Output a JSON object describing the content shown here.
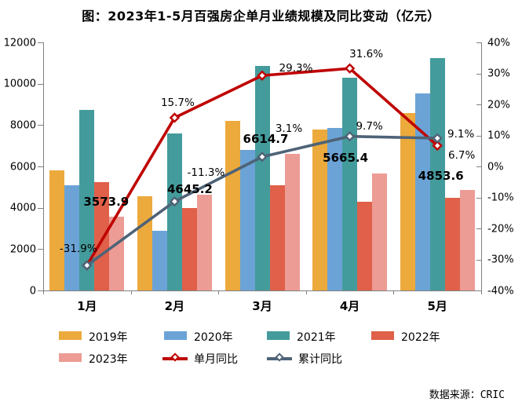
{
  "chart_data": {
    "type": "bar",
    "title": "图：2023年1-5月百强房企单月业绩规模及同比变动（亿元）",
    "source": "数据来源：CRIC",
    "categories": [
      "1月",
      "2月",
      "3月",
      "4月",
      "5月"
    ],
    "bar_series": [
      {
        "name": "2019年",
        "color": "#ECA93C",
        "values": [
          5800,
          4550,
          8200,
          7800,
          8600
        ]
      },
      {
        "name": "2020年",
        "color": "#6BA3D6",
        "values": [
          5100,
          2900,
          6800,
          7850,
          9550
        ]
      },
      {
        "name": "2021年",
        "color": "#449B9B",
        "values": [
          8750,
          7600,
          10850,
          10300,
          11250
        ]
      },
      {
        "name": "2022年",
        "color": "#E0604A",
        "values": [
          5250,
          4000,
          5100,
          4300,
          4500
        ]
      },
      {
        "name": "2023年",
        "color": "#EC9C94",
        "values": [
          3573.9,
          4645.2,
          6614.7,
          5665.4,
          4853.6
        ],
        "labels": [
          "3573.9",
          "4645.2",
          "6614.7",
          "5665.4",
          "4853.6"
        ]
      }
    ],
    "line_series": [
      {
        "name": "单月同比",
        "color": "#BF0000",
        "values": [
          -31.9,
          15.7,
          29.3,
          31.6,
          6.7
        ],
        "labels": [
          "-31.9%",
          "15.7%",
          "29.3%",
          "31.6%",
          "6.7%"
        ]
      },
      {
        "name": "累计同比",
        "color": "#4E6377",
        "values": [
          -31.9,
          -11.3,
          3.1,
          9.7,
          9.1
        ],
        "labels": [
          "",
          "-11.3%",
          "3.1%",
          "9.7%",
          "9.1%"
        ]
      }
    ],
    "y_left_axis": {
      "min": 0,
      "max": 12000,
      "ticks": [
        "12000",
        "10000",
        "8000",
        "6000",
        "4000",
        "2000",
        "0"
      ]
    },
    "y_right_axis": {
      "min": -40,
      "max": 40,
      "ticks": [
        "40%",
        "30%",
        "20%",
        "10%",
        "0%",
        "-10%",
        "-20%",
        "-30%",
        "-40%"
      ]
    },
    "legend_position": "bottom",
    "grid": false
  }
}
